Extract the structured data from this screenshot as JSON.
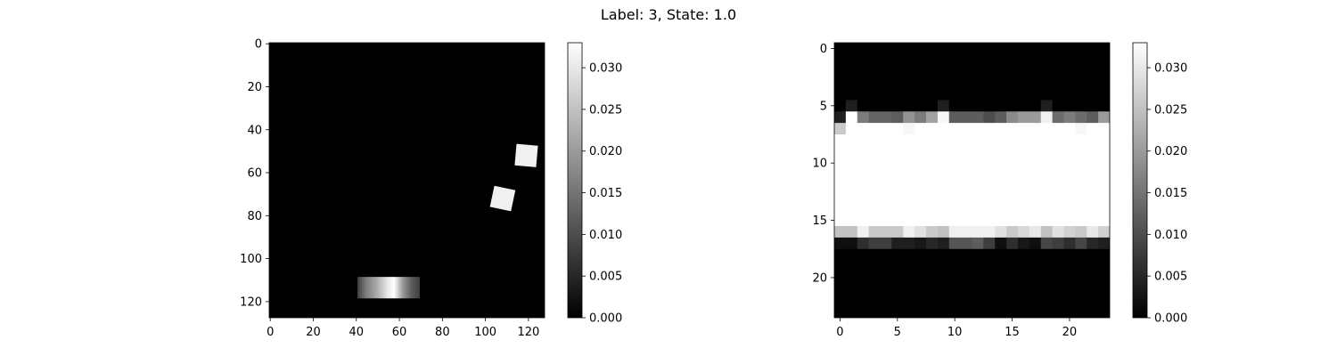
{
  "figure": {
    "suptitle": "Label: 3, State: 1.0"
  },
  "chart_data": [
    {
      "type": "heatmap",
      "title": "",
      "xlabel": "",
      "ylabel": "",
      "image_size": [
        128,
        128
      ],
      "colormap": "gray",
      "vmin": 0.0,
      "vmax": 0.033,
      "xlim": [
        -0.5,
        127.5
      ],
      "ylim": [
        127.5,
        -0.5
      ],
      "xticks": [
        0,
        20,
        40,
        60,
        80,
        100,
        120
      ],
      "yticks": [
        0,
        20,
        40,
        60,
        80,
        100,
        120
      ],
      "colorbar_ticks": [
        "0.000",
        "0.005",
        "0.010",
        "0.015",
        "0.020",
        "0.025",
        "0.030"
      ],
      "colorbar_tick_values": [
        0.0,
        0.005,
        0.01,
        0.015,
        0.02,
        0.025,
        0.03
      ],
      "background_value": 0.0,
      "blobs": [
        {
          "shape": "square",
          "center": [
            119,
            52
          ],
          "half_size": 5,
          "rotation_deg": 5,
          "value": 0.031
        },
        {
          "shape": "square",
          "center": [
            108,
            72
          ],
          "half_size": 5,
          "rotation_deg": 12,
          "value": 0.031
        },
        {
          "shape": "rect_gradient",
          "x_range": [
            41,
            70
          ],
          "center_y": 114,
          "height": 10,
          "profile_x": [
            41,
            45,
            50,
            55,
            58,
            62,
            66,
            70
          ],
          "profile_value": [
            0.008,
            0.016,
            0.022,
            0.03,
            0.033,
            0.02,
            0.012,
            0.008
          ]
        }
      ]
    },
    {
      "type": "heatmap",
      "title": "",
      "xlabel": "",
      "ylabel": "",
      "image_size": [
        24,
        24
      ],
      "colormap": "gray",
      "vmin": 0.0,
      "vmax": 0.033,
      "xlim": [
        -0.5,
        23.5
      ],
      "ylim": [
        23.5,
        -0.5
      ],
      "xticks": [
        0,
        5,
        10,
        15,
        20
      ],
      "yticks": [
        0,
        5,
        10,
        15,
        20
      ],
      "colorbar_ticks": [
        "0.000",
        "0.005",
        "0.010",
        "0.015",
        "0.020",
        "0.025",
        "0.030"
      ],
      "colorbar_tick_values": [
        0.0,
        0.005,
        0.01,
        0.015,
        0.02,
        0.025,
        0.03
      ],
      "default_value": 0.0,
      "row_values": {
        "5": [
          0.0,
          0.004,
          0.0,
          0.0,
          0.0,
          0.0,
          0.0,
          0.0,
          0.0,
          0.004,
          0.0,
          0.0,
          0.0,
          0.0,
          0.0,
          0.0,
          0.0,
          0.0,
          0.004,
          0.0,
          0.0,
          0.0,
          0.0,
          0.0
        ],
        "6": [
          0.004,
          0.033,
          0.016,
          0.013,
          0.013,
          0.012,
          0.019,
          0.016,
          0.021,
          0.032,
          0.012,
          0.012,
          0.012,
          0.01,
          0.012,
          0.018,
          0.02,
          0.02,
          0.031,
          0.014,
          0.016,
          0.014,
          0.012,
          0.02
        ],
        "7": [
          0.026,
          0.033,
          0.033,
          0.033,
          0.033,
          0.033,
          0.032,
          0.033,
          0.033,
          0.033,
          0.033,
          0.033,
          0.033,
          0.033,
          0.033,
          0.033,
          0.033,
          0.033,
          0.033,
          0.033,
          0.033,
          0.032,
          0.033,
          0.033
        ],
        "8": [
          0.033,
          0.033,
          0.033,
          0.033,
          0.033,
          0.033,
          0.033,
          0.033,
          0.033,
          0.033,
          0.033,
          0.033,
          0.033,
          0.033,
          0.033,
          0.033,
          0.033,
          0.033,
          0.033,
          0.033,
          0.033,
          0.033,
          0.033,
          0.033
        ],
        "9": [
          0.033,
          0.033,
          0.033,
          0.033,
          0.033,
          0.033,
          0.033,
          0.033,
          0.033,
          0.033,
          0.033,
          0.033,
          0.033,
          0.033,
          0.033,
          0.033,
          0.033,
          0.033,
          0.033,
          0.033,
          0.033,
          0.033,
          0.033,
          0.033
        ],
        "10": [
          0.033,
          0.033,
          0.033,
          0.033,
          0.033,
          0.033,
          0.033,
          0.033,
          0.033,
          0.033,
          0.033,
          0.033,
          0.033,
          0.033,
          0.033,
          0.033,
          0.033,
          0.033,
          0.033,
          0.033,
          0.033,
          0.033,
          0.033,
          0.033
        ],
        "11": [
          0.033,
          0.033,
          0.033,
          0.033,
          0.033,
          0.033,
          0.033,
          0.033,
          0.033,
          0.033,
          0.033,
          0.033,
          0.033,
          0.033,
          0.033,
          0.033,
          0.033,
          0.033,
          0.033,
          0.033,
          0.033,
          0.033,
          0.033,
          0.033
        ],
        "12": [
          0.033,
          0.033,
          0.033,
          0.033,
          0.033,
          0.033,
          0.033,
          0.033,
          0.033,
          0.033,
          0.033,
          0.033,
          0.033,
          0.033,
          0.033,
          0.033,
          0.033,
          0.033,
          0.033,
          0.033,
          0.033,
          0.033,
          0.033,
          0.033
        ],
        "13": [
          0.033,
          0.033,
          0.033,
          0.033,
          0.033,
          0.033,
          0.033,
          0.033,
          0.033,
          0.033,
          0.033,
          0.033,
          0.033,
          0.033,
          0.033,
          0.033,
          0.033,
          0.033,
          0.033,
          0.033,
          0.033,
          0.033,
          0.033,
          0.033
        ],
        "14": [
          0.033,
          0.033,
          0.033,
          0.033,
          0.033,
          0.033,
          0.033,
          0.033,
          0.033,
          0.033,
          0.033,
          0.033,
          0.033,
          0.033,
          0.033,
          0.033,
          0.033,
          0.033,
          0.033,
          0.033,
          0.033,
          0.033,
          0.033,
          0.033
        ],
        "15": [
          0.033,
          0.033,
          0.033,
          0.033,
          0.033,
          0.033,
          0.033,
          0.033,
          0.033,
          0.033,
          0.033,
          0.033,
          0.033,
          0.033,
          0.033,
          0.033,
          0.033,
          0.033,
          0.033,
          0.033,
          0.033,
          0.033,
          0.033,
          0.033
        ],
        "16": [
          0.025,
          0.025,
          0.031,
          0.026,
          0.026,
          0.026,
          0.031,
          0.029,
          0.026,
          0.025,
          0.031,
          0.031,
          0.031,
          0.031,
          0.029,
          0.026,
          0.028,
          0.03,
          0.025,
          0.029,
          0.027,
          0.026,
          0.03,
          0.027
        ],
        "17": [
          0.002,
          0.002,
          0.006,
          0.008,
          0.008,
          0.004,
          0.004,
          0.003,
          0.005,
          0.004,
          0.011,
          0.011,
          0.012,
          0.008,
          0.002,
          0.006,
          0.003,
          0.002,
          0.009,
          0.008,
          0.006,
          0.009,
          0.005,
          0.004
        ]
      }
    }
  ]
}
